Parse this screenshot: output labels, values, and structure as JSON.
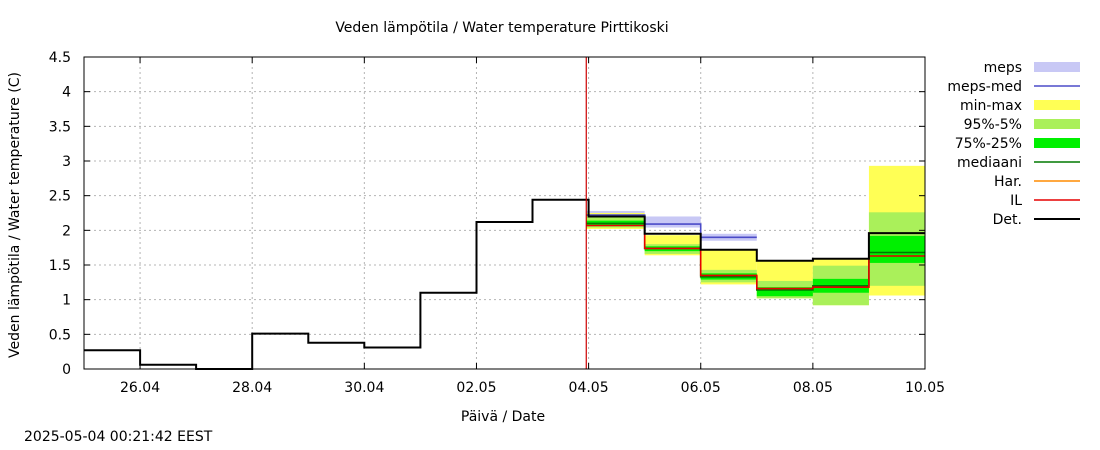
{
  "chart_data": {
    "type": "line",
    "title": "Veden lämpötila / Water temperature Pirttikoski",
    "xlabel": "Päivä / Date",
    "ylabel": "Veden lämpötila / Water temperature (C)",
    "ylim": [
      0,
      4.5
    ],
    "xlim": [
      "2025-04-25",
      "2025-05-10"
    ],
    "yticks": [
      "0",
      "0.5",
      "1",
      "1.5",
      "2",
      "2.5",
      "3",
      "3.5",
      "4",
      "4.5"
    ],
    "xticks": [
      {
        "date": "2025-04-26",
        "label": "26.04"
      },
      {
        "date": "2025-04-28",
        "label": "28.04"
      },
      {
        "date": "2025-04-30",
        "label": "30.04"
      },
      {
        "date": "2025-05-02",
        "label": "02.05"
      },
      {
        "date": "2025-05-04",
        "label": "04.05"
      },
      {
        "date": "2025-05-06",
        "label": "06.05"
      },
      {
        "date": "2025-05-08",
        "label": "08.05"
      },
      {
        "date": "2025-05-10",
        "label": "10.05"
      }
    ],
    "grid": true,
    "legend_position": "right",
    "forecast_start": "2025-05-03 23:00",
    "series": [
      {
        "name": "meps",
        "kind": "band",
        "color": "#c8c8f5",
        "values": [
          {
            "from": "2025-05-03 23:00",
            "to": "2025-05-05 00:00",
            "low": 2.18,
            "high": 2.28
          },
          {
            "from": "2025-05-05 00:00",
            "to": "2025-05-06 00:00",
            "low": 2.04,
            "high": 2.2
          },
          {
            "from": "2025-05-06 00:00",
            "to": "2025-05-07 00:00",
            "low": 1.85,
            "high": 1.95
          }
        ]
      },
      {
        "name": "meps-med",
        "kind": "line",
        "color": "#4b4bc8",
        "values": [
          {
            "from": "2025-05-03 23:00",
            "to": "2025-05-05 00:00",
            "y": 2.22
          },
          {
            "from": "2025-05-05 00:00",
            "to": "2025-05-06 00:00",
            "y": 2.09
          },
          {
            "from": "2025-05-06 00:00",
            "to": "2025-05-07 00:00",
            "y": 1.9
          }
        ]
      },
      {
        "name": "min-max",
        "kind": "band",
        "color": "#ffff55",
        "values": [
          {
            "from": "2025-05-03 23:00",
            "to": "2025-05-05 00:00",
            "low": 2.02,
            "high": 2.25
          },
          {
            "from": "2025-05-05 00:00",
            "to": "2025-05-06 00:00",
            "low": 1.64,
            "high": 1.93
          },
          {
            "from": "2025-05-06 00:00",
            "to": "2025-05-07 00:00",
            "low": 1.22,
            "high": 1.72
          },
          {
            "from": "2025-05-07 00:00",
            "to": "2025-05-08 00:00",
            "low": 1.02,
            "high": 1.56
          },
          {
            "from": "2025-05-08 00:00",
            "to": "2025-05-09 00:00",
            "low": 0.92,
            "high": 1.59
          },
          {
            "from": "2025-05-09 00:00",
            "to": "2025-05-10 00:00",
            "low": 1.06,
            "high": 2.93
          }
        ]
      },
      {
        "name": "95%-5%",
        "kind": "band",
        "color": "#aaf05a",
        "values": [
          {
            "from": "2025-05-03 23:00",
            "to": "2025-05-05 00:00",
            "low": 2.04,
            "high": 2.2
          },
          {
            "from": "2025-05-05 00:00",
            "to": "2025-05-06 00:00",
            "low": 1.66,
            "high": 1.8
          },
          {
            "from": "2025-05-06 00:00",
            "to": "2025-05-07 00:00",
            "low": 1.25,
            "high": 1.43
          },
          {
            "from": "2025-05-07 00:00",
            "to": "2025-05-08 00:00",
            "low": 1.02,
            "high": 1.27
          },
          {
            "from": "2025-05-08 00:00",
            "to": "2025-05-09 00:00",
            "low": 0.92,
            "high": 1.49
          },
          {
            "from": "2025-05-09 00:00",
            "to": "2025-05-10 00:00",
            "low": 1.2,
            "high": 2.26
          }
        ]
      },
      {
        "name": "75%-25%",
        "kind": "band",
        "color": "#00f000",
        "values": [
          {
            "from": "2025-05-03 23:00",
            "to": "2025-05-05 00:00",
            "low": 2.06,
            "high": 2.14
          },
          {
            "from": "2025-05-05 00:00",
            "to": "2025-05-06 00:00",
            "low": 1.7,
            "high": 1.77
          },
          {
            "from": "2025-05-06 00:00",
            "to": "2025-05-07 00:00",
            "low": 1.29,
            "high": 1.38
          },
          {
            "from": "2025-05-07 00:00",
            "to": "2025-05-08 00:00",
            "low": 1.05,
            "high": 1.18
          },
          {
            "from": "2025-05-08 00:00",
            "to": "2025-05-09 00:00",
            "low": 1.1,
            "high": 1.3
          },
          {
            "from": "2025-05-09 00:00",
            "to": "2025-05-10 00:00",
            "low": 1.53,
            "high": 1.92
          }
        ]
      },
      {
        "name": "mediaani",
        "kind": "line",
        "color": "#007800",
        "values": [
          {
            "from": "2025-05-03 23:00",
            "to": "2025-05-05 00:00",
            "y": 2.1
          },
          {
            "from": "2025-05-05 00:00",
            "to": "2025-05-06 00:00",
            "y": 1.74
          },
          {
            "from": "2025-05-06 00:00",
            "to": "2025-05-07 00:00",
            "y": 1.33
          },
          {
            "from": "2025-05-07 00:00",
            "to": "2025-05-08 00:00",
            "y": 1.14
          },
          {
            "from": "2025-05-08 00:00",
            "to": "2025-05-09 00:00",
            "y": 1.2
          },
          {
            "from": "2025-05-09 00:00",
            "to": "2025-05-10 00:00",
            "y": 1.68
          }
        ]
      },
      {
        "name": "Har.",
        "kind": "line",
        "color": "#ff8c00",
        "values": []
      },
      {
        "name": "IL",
        "kind": "line",
        "color": "#e60000",
        "values": [
          {
            "from": "2025-05-03 23:00",
            "to": "2025-05-05 00:00",
            "y": 2.07
          },
          {
            "from": "2025-05-05 00:00",
            "to": "2025-05-06 00:00",
            "y": 1.74
          },
          {
            "from": "2025-05-06 00:00",
            "to": "2025-05-07 00:00",
            "y": 1.35
          },
          {
            "from": "2025-05-07 00:00",
            "to": "2025-05-08 00:00",
            "y": 1.16
          },
          {
            "from": "2025-05-08 00:00",
            "to": "2025-05-09 00:00",
            "y": 1.18
          },
          {
            "from": "2025-05-09 00:00",
            "to": "2025-05-10 00:00",
            "y": 1.63
          }
        ]
      },
      {
        "name": "Det.",
        "kind": "line",
        "color": "#000000",
        "values": [
          {
            "from": "2025-04-25 00:00",
            "to": "2025-04-26 00:00",
            "y": 0.27
          },
          {
            "from": "2025-04-26 00:00",
            "to": "2025-04-27 00:00",
            "y": 0.06
          },
          {
            "from": "2025-04-27 00:00",
            "to": "2025-04-28 00:00",
            "y": 0.0
          },
          {
            "from": "2025-04-28 00:00",
            "to": "2025-04-29 00:00",
            "y": 0.51
          },
          {
            "from": "2025-04-29 00:00",
            "to": "2025-04-30 00:00",
            "y": 0.38
          },
          {
            "from": "2025-04-30 00:00",
            "to": "2025-05-01 00:00",
            "y": 0.31
          },
          {
            "from": "2025-05-01 00:00",
            "to": "2025-05-02 00:00",
            "y": 1.1
          },
          {
            "from": "2025-05-02 00:00",
            "to": "2025-05-03 00:00",
            "y": 2.12
          },
          {
            "from": "2025-05-03 00:00",
            "to": "2025-05-04 00:00",
            "y": 2.44
          },
          {
            "from": "2025-05-04 00:00",
            "to": "2025-05-05 00:00",
            "y": 2.2
          },
          {
            "from": "2025-05-05 00:00",
            "to": "2025-05-06 00:00",
            "y": 1.95
          },
          {
            "from": "2025-05-06 00:00",
            "to": "2025-05-07 00:00",
            "y": 1.72
          },
          {
            "from": "2025-05-07 00:00",
            "to": "2025-05-08 00:00",
            "y": 1.56
          },
          {
            "from": "2025-05-08 00:00",
            "to": "2025-05-09 00:00",
            "y": 1.59
          },
          {
            "from": "2025-05-09 00:00",
            "to": "2025-05-10 00:00",
            "y": 1.96
          }
        ]
      }
    ]
  },
  "timestamp": "2025-05-04 00:21:42 EEST"
}
